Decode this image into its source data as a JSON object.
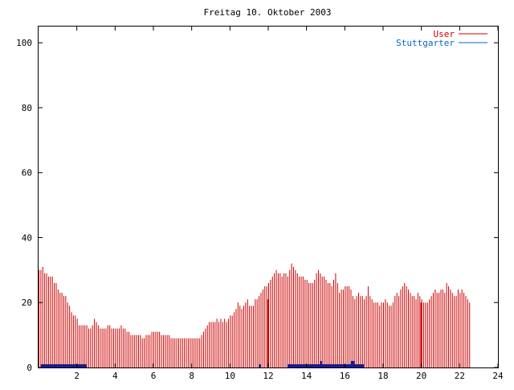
{
  "chart_data": {
    "type": "bar",
    "title": "Freitag 10. Oktober 2003",
    "xlabel": "",
    "ylabel": "",
    "xlim": [
      0,
      24
    ],
    "ylim": [
      0,
      105
    ],
    "x_ticks": [
      2,
      4,
      6,
      8,
      10,
      12,
      14,
      16,
      18,
      20,
      22,
      24
    ],
    "y_ticks": [
      0,
      20,
      40,
      60,
      80,
      100
    ],
    "grid": false,
    "legend_position": "top-right",
    "bar_interval_hours": 0.1,
    "series": [
      {
        "name": "User",
        "color": "#cc0000",
        "values": [
          30,
          30,
          31,
          29,
          29,
          28,
          28,
          28,
          26,
          26,
          24,
          23,
          23,
          22,
          22,
          20,
          19,
          17,
          16,
          16,
          15,
          13,
          13,
          13,
          13,
          13,
          12,
          12,
          13,
          15,
          14,
          13,
          12,
          12,
          12,
          12,
          13,
          13,
          12,
          12,
          12,
          12,
          12,
          13,
          12,
          12,
          11,
          11,
          10,
          10,
          10,
          10,
          10,
          10,
          9,
          9,
          10,
          10,
          10,
          11,
          11,
          11,
          11,
          11,
          10,
          10,
          10,
          10,
          10,
          9,
          9,
          9,
          9,
          9,
          9,
          9,
          9,
          9,
          9,
          9,
          9,
          9,
          9,
          9,
          9,
          10,
          11,
          12,
          13,
          14,
          14,
          14,
          14,
          15,
          14,
          15,
          14,
          15,
          14,
          15,
          16,
          16,
          17,
          18,
          20,
          19,
          18,
          19,
          20,
          21,
          19,
          19,
          19,
          21,
          21,
          22,
          23,
          24,
          25,
          25,
          26,
          27,
          28,
          29,
          30,
          29,
          29,
          28,
          29,
          29,
          28,
          30,
          32,
          31,
          30,
          29,
          28,
          28,
          28,
          27,
          27,
          26,
          26,
          26,
          27,
          29,
          30,
          29,
          28,
          28,
          27,
          26,
          26,
          25,
          27,
          29,
          26,
          23,
          24,
          24,
          25,
          25,
          25,
          24,
          22,
          21,
          22,
          23,
          22,
          22,
          21,
          22,
          25,
          22,
          21,
          20,
          20,
          20,
          19,
          20,
          20,
          21,
          20,
          19,
          19,
          20,
          22,
          23,
          22,
          24,
          25,
          26,
          25,
          24,
          23,
          22,
          22,
          21,
          23,
          22,
          21,
          20,
          20,
          20,
          21,
          22,
          23,
          24,
          23,
          23,
          24,
          24,
          23,
          26,
          25,
          24,
          23,
          22,
          22,
          24,
          23,
          24,
          23,
          22,
          21,
          20
        ],
        "highlight_bars": [
          {
            "x": 12.0,
            "value": 21
          },
          {
            "x": 20.0,
            "value": 20
          }
        ]
      },
      {
        "name": "Stuttgarter",
        "color": "#0066cc",
        "segments": [
          {
            "x_start": 0.1,
            "x_end": 2.5,
            "value": 1
          },
          {
            "x_start": 11.5,
            "x_end": 11.6,
            "value": 1
          },
          {
            "x_start": 13.0,
            "x_end": 17.0,
            "value": 1
          },
          {
            "x_start": 14.7,
            "x_end": 14.8,
            "value": 2
          },
          {
            "x_start": 16.3,
            "x_end": 16.5,
            "value": 2
          }
        ]
      }
    ]
  }
}
